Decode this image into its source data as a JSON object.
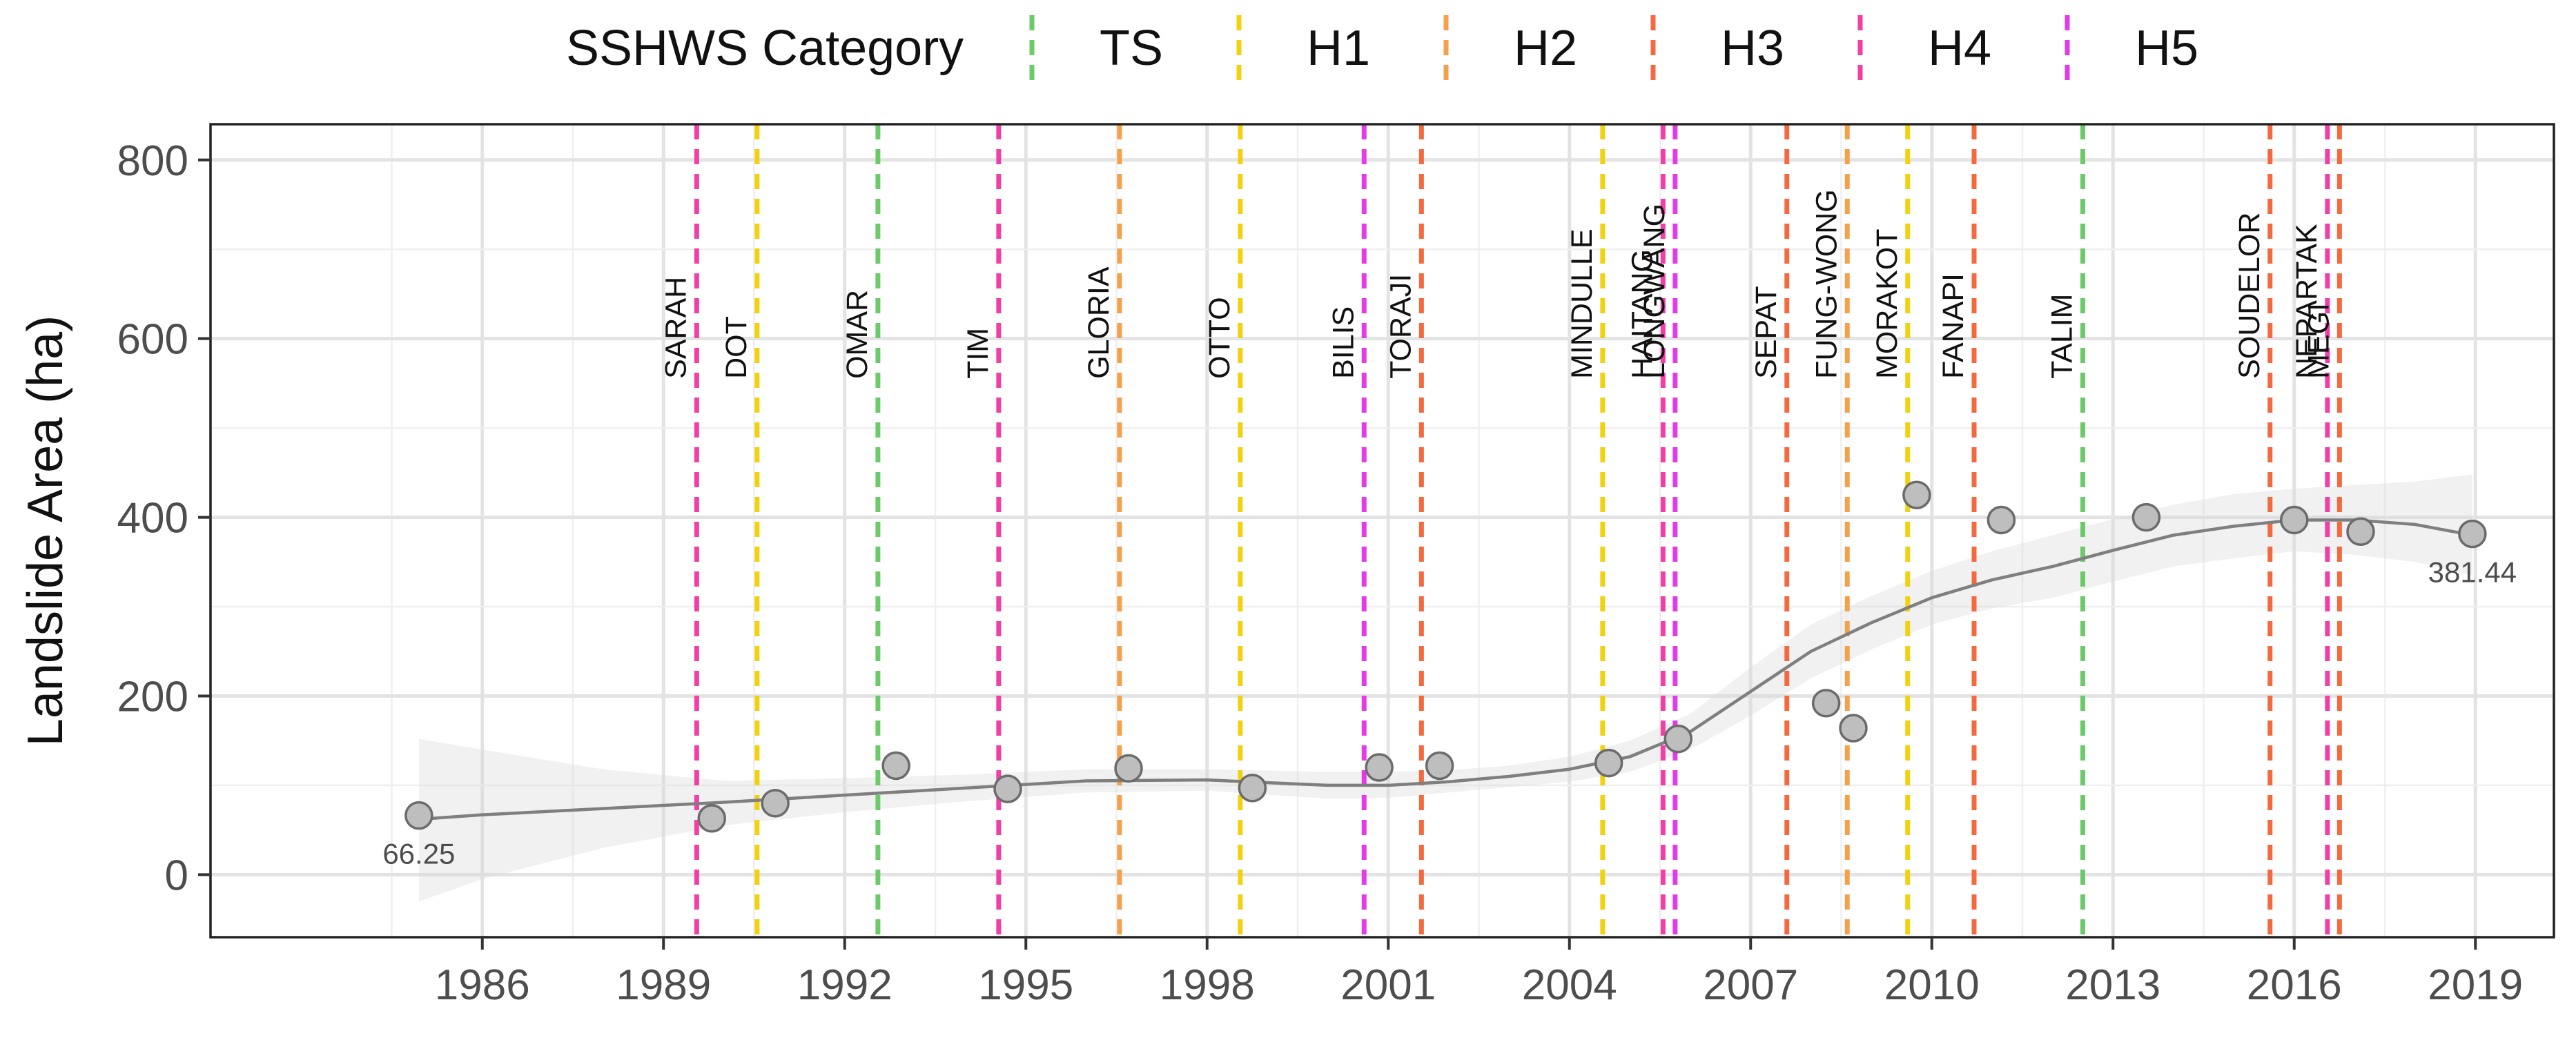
{
  "chart_data": {
    "type": "scatter",
    "title": "",
    "xlabel": "",
    "ylabel": "Landslide Area (ha)",
    "xlim": [
      1981.5,
      2020.3
    ],
    "ylim": [
      -70,
      840
    ],
    "x_ticks": [
      1986,
      1989,
      1992,
      1995,
      1998,
      2001,
      2004,
      2007,
      2010,
      2013,
      2016,
      2019
    ],
    "y_ticks": [
      0,
      200,
      400,
      600,
      800
    ],
    "legend": {
      "title": "SSHWS Category",
      "position": "top",
      "entries": [
        {
          "label": "TS",
          "color": "#6ACB68"
        },
        {
          "label": "H1",
          "color": "#F2D20F"
        },
        {
          "label": "H2",
          "color": "#F5A04A"
        },
        {
          "label": "H3",
          "color": "#F46A3E"
        },
        {
          "label": "H4",
          "color": "#F23FA7"
        },
        {
          "label": "H5",
          "color": "#E23CE6"
        }
      ]
    },
    "points": [
      {
        "x": 1984.95,
        "y": 66.25
      },
      {
        "x": 1989.8,
        "y": 63
      },
      {
        "x": 1990.85,
        "y": 80
      },
      {
        "x": 1992.85,
        "y": 122
      },
      {
        "x": 1994.7,
        "y": 96
      },
      {
        "x": 1996.7,
        "y": 119
      },
      {
        "x": 1998.75,
        "y": 97
      },
      {
        "x": 2000.85,
        "y": 120
      },
      {
        "x": 2001.85,
        "y": 122
      },
      {
        "x": 2004.65,
        "y": 125
      },
      {
        "x": 2005.8,
        "y": 152
      },
      {
        "x": 2008.25,
        "y": 192
      },
      {
        "x": 2008.7,
        "y": 164
      },
      {
        "x": 2009.75,
        "y": 425
      },
      {
        "x": 2011.15,
        "y": 397
      },
      {
        "x": 2013.55,
        "y": 400
      },
      {
        "x": 2016.0,
        "y": 397
      },
      {
        "x": 2017.1,
        "y": 384
      },
      {
        "x": 2018.95,
        "y": 381.44
      }
    ],
    "point_labels": [
      {
        "x": 1984.95,
        "y": 66.25,
        "text": "66.25",
        "position": "below"
      },
      {
        "x": 2018.95,
        "y": 381.44,
        "text": "381.44",
        "position": "below"
      }
    ],
    "smooth": {
      "x": [
        1984.95,
        1986,
        1988,
        1990,
        1992,
        1994,
        1996,
        1998,
        2000,
        2001,
        2002,
        2003,
        2004,
        2005,
        2006,
        2007,
        2008,
        2009,
        2010,
        2011,
        2012,
        2013,
        2014,
        2015,
        2016,
        2017,
        2018,
        2018.95
      ],
      "y": [
        62,
        67,
        74,
        81,
        89,
        97,
        105,
        106,
        100,
        100,
        104,
        110,
        118,
        132,
        160,
        205,
        250,
        282,
        310,
        330,
        345,
        363,
        380,
        390,
        397,
        397,
        392,
        380
      ],
      "ci_low": [
        -30,
        -5,
        30,
        55,
        70,
        82,
        92,
        94,
        85,
        86,
        92,
        98,
        104,
        115,
        140,
        178,
        220,
        252,
        280,
        298,
        310,
        328,
        345,
        354,
        362,
        358,
        350,
        335
      ],
      "ci_high": [
        152,
        140,
        118,
        105,
        108,
        112,
        118,
        118,
        115,
        115,
        117,
        122,
        132,
        150,
        180,
        232,
        280,
        312,
        340,
        362,
        380,
        398,
        414,
        426,
        432,
        436,
        440,
        448
      ]
    },
    "storms": [
      {
        "name": "SARAH",
        "x": 1989.55,
        "category": "H4"
      },
      {
        "name": "DOT",
        "x": 1990.55,
        "category": "H1"
      },
      {
        "name": "OMAR",
        "x": 1992.55,
        "category": "TS"
      },
      {
        "name": "TIM",
        "x": 1994.55,
        "category": "H4"
      },
      {
        "name": "GLORIA",
        "x": 1996.55,
        "category": "H2"
      },
      {
        "name": "OTTO",
        "x": 1998.55,
        "category": "H1"
      },
      {
        "name": "BILIS",
        "x": 2000.6,
        "category": "H5"
      },
      {
        "name": "TORAJI",
        "x": 2001.55,
        "category": "H3"
      },
      {
        "name": "MINDULLE",
        "x": 2004.55,
        "category": "H1"
      },
      {
        "name": "HAITANG",
        "x": 2005.55,
        "category": "H4"
      },
      {
        "name": "LONGWANG",
        "x": 2005.75,
        "category": "H5"
      },
      {
        "name": "SEPAT",
        "x": 2007.6,
        "category": "H3"
      },
      {
        "name": "FUNG-WONG",
        "x": 2008.6,
        "category": "H2"
      },
      {
        "name": "MORAKOT",
        "x": 2009.6,
        "category": "H1"
      },
      {
        "name": "FANAPI",
        "x": 2010.7,
        "category": "H3"
      },
      {
        "name": "TALIM",
        "x": 2012.5,
        "category": "TS"
      },
      {
        "name": "SOUDELOR",
        "x": 2015.6,
        "category": "H3"
      },
      {
        "name": "NEPARTAK",
        "x": 2016.55,
        "category": "H4"
      },
      {
        "name": "MEGI",
        "x": 2016.75,
        "category": "H3"
      }
    ]
  }
}
